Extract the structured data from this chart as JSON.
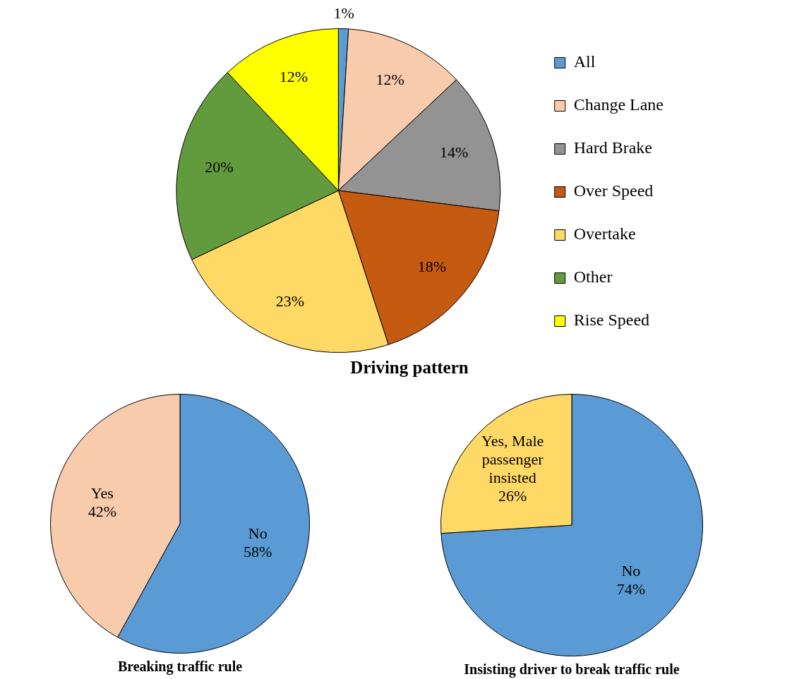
{
  "chart_data": [
    {
      "type": "pie",
      "title": "Driving pattern",
      "categories": [
        "All",
        "Change Lane",
        "Hard Brake",
        "Over Speed",
        "Overtake",
        "Other",
        "Rise Speed"
      ],
      "values": [
        1,
        12,
        14,
        18,
        23,
        20,
        12
      ],
      "colors": [
        "#5b9bd5",
        "#f8cbad",
        "#939393",
        "#c55a11",
        "#ffd966",
        "#629b3d",
        "#ffff00"
      ],
      "legend": "right",
      "value_labels": [
        "1%",
        "12%",
        "14%",
        "18%",
        "23%",
        "20%",
        "12%"
      ]
    },
    {
      "type": "pie",
      "title": "Breaking traffic rule",
      "categories": [
        "No",
        "Yes"
      ],
      "values": [
        58,
        42
      ],
      "colors": [
        "#5b9bd5",
        "#f8cbad"
      ],
      "legend": false,
      "value_labels": [
        "58%",
        "42%"
      ]
    },
    {
      "type": "pie",
      "title": "Insisting driver to break traffic rule",
      "categories": [
        "No",
        "Yes, Male passenger insisted"
      ],
      "values": [
        74,
        26
      ],
      "colors": [
        "#5b9bd5",
        "#ffd966"
      ],
      "legend": false,
      "value_labels": [
        "74%",
        "26%"
      ]
    }
  ]
}
